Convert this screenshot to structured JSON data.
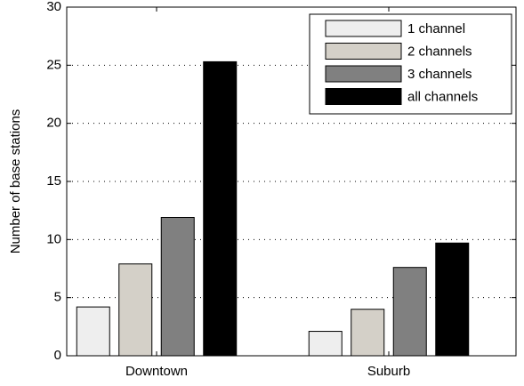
{
  "chart_data": {
    "type": "bar",
    "ylabel": "Number of base stations",
    "categories": [
      "Downtown",
      "Suburb"
    ],
    "series": [
      {
        "name": "1 channel",
        "color": "#eeeeee",
        "values": [
          4.2,
          2.1
        ]
      },
      {
        "name": "2 channels",
        "color": "#d4d0c8",
        "values": [
          7.9,
          4.0
        ]
      },
      {
        "name": "3 channels",
        "color": "#808080",
        "values": [
          11.9,
          7.6
        ]
      },
      {
        "name": "all channels",
        "color": "#000000",
        "values": [
          25.3,
          9.7
        ]
      }
    ],
    "ylim": [
      0,
      30
    ],
    "yticks": [
      0,
      5,
      10,
      15,
      20,
      25,
      30
    ],
    "grid": true,
    "legend": "top-right"
  }
}
